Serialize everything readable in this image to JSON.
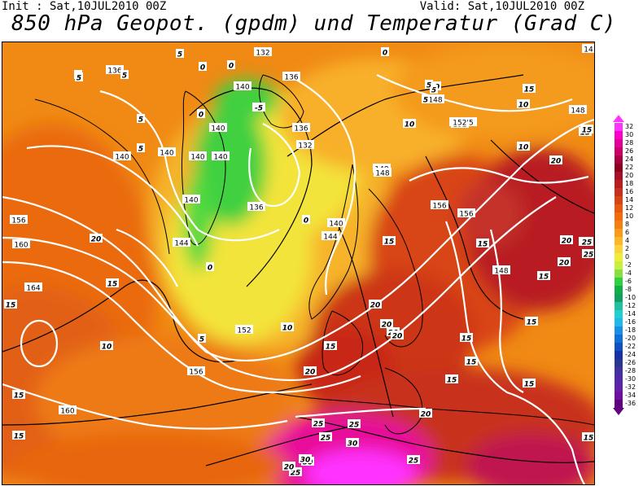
{
  "header": {
    "init": "Init : Sat,10JUL2010 00Z",
    "valid": "Valid: Sat,10JUL2010 00Z",
    "title": "850 hPa Geopot. (gpdm) und Temperatur (Grad C)"
  },
  "legend": {
    "labels": [
      "32",
      "30",
      "28",
      "26",
      "24",
      "22",
      "20",
      "18",
      "16",
      "14",
      "12",
      "10",
      "8",
      "6",
      "4",
      "2",
      "0",
      "-2",
      "-4",
      "-6",
      "-8",
      "-10",
      "-12",
      "-14",
      "-16",
      "-18",
      "-20",
      "-22",
      "-24",
      "-26",
      "-28",
      "-30",
      "-32",
      "-34",
      "-36"
    ],
    "colors": [
      "#ff33ff",
      "#ff00cc",
      "#e6009a",
      "#cc0066",
      "#a80040",
      "#8c0020",
      "#a8102a",
      "#b81e20",
      "#c8301e",
      "#d84414",
      "#e8580e",
      "#f26c0c",
      "#f57e10",
      "#f99a18",
      "#fdb628",
      "#fdd23a",
      "#f0ec3a",
      "#c8f040",
      "#88e040",
      "#30d040",
      "#10b048",
      "#10a060",
      "#20c0a0",
      "#20d0d0",
      "#20b8e8",
      "#1890e8",
      "#1070d8",
      "#1050c0",
      "#1830a8",
      "#283890",
      "#4030a0",
      "#5028a8",
      "#6020a8",
      "#7010a0",
      "#600080"
    ]
  },
  "map": {
    "geopotential_labels": [
      "136",
      "132",
      "140",
      "136",
      "140",
      "140",
      "140",
      "140",
      "140",
      "136",
      "132",
      "136",
      "140",
      "144",
      "144",
      "140",
      "148",
      "152",
      "156",
      "156",
      "160",
      "164",
      "156",
      "152",
      "148",
      "152'5",
      "156",
      "148",
      "148",
      "160",
      "148",
      "14"
    ],
    "temperature_labels": [
      "5",
      "5",
      "5",
      "5",
      "5",
      "0",
      "0",
      "0",
      "-5",
      "0",
      "0",
      "5",
      "5",
      "10",
      "10",
      "20",
      "15",
      "15",
      "15",
      "20",
      "20",
      "20",
      "20",
      "15",
      "15",
      "15",
      "15",
      "15",
      "20",
      "25",
      "15",
      "20",
      "15",
      "15",
      "15",
      "10",
      "10",
      "20",
      "25",
      "25",
      "30",
      "30",
      "25",
      "30",
      "25",
      "15",
      "15",
      "20",
      "0",
      "5",
      "25",
      "15",
      "20",
      "25",
      "15",
      "5",
      "10",
      "5",
      "15",
      "0",
      "15",
      "20",
      "25"
    ]
  }
}
